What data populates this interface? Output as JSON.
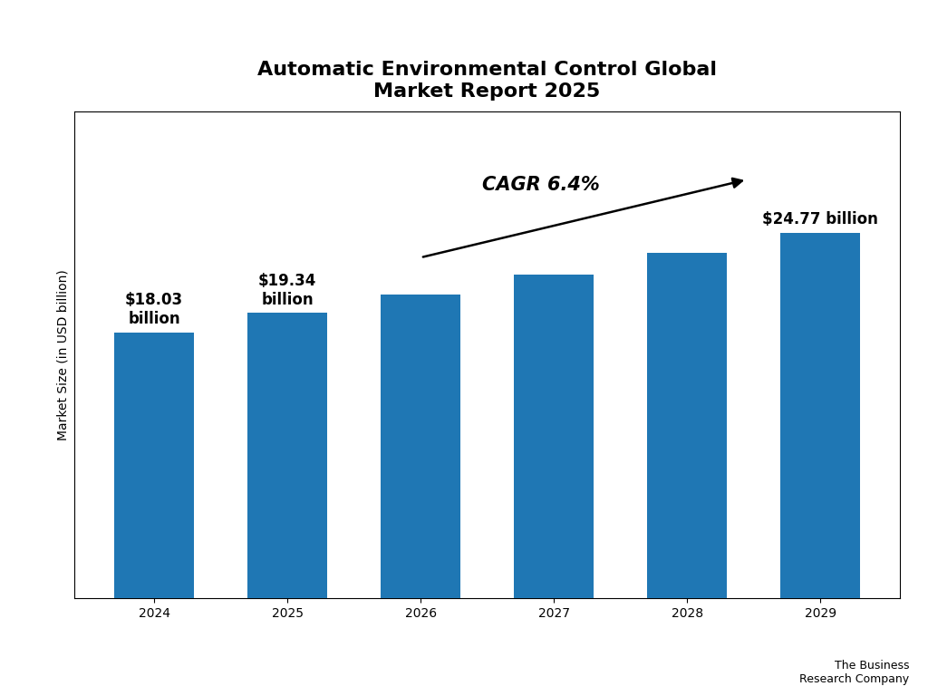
{
  "chart_data": {
    "type": "bar",
    "title": "Automatic Environmental Control Global\nMarket Report 2025",
    "categories": [
      "2024",
      "2025",
      "2026",
      "2027",
      "2028",
      "2029"
    ],
    "values": [
      18.03,
      19.34,
      20.6,
      21.97,
      23.41,
      24.77
    ],
    "value_labels": [
      "$18.03\nbillion",
      "$19.34\nbillion",
      null,
      null,
      null,
      "$24.77 billion"
    ],
    "data_labels": true,
    "ylabel": "Market Size (in USD billion)",
    "ylim": [
      0,
      33
    ],
    "tick_labels": "x",
    "annotations": [
      {
        "text": "CAGR 6.4%"
      },
      {
        "text": "The Business\nResearch Company"
      }
    ]
  }
}
